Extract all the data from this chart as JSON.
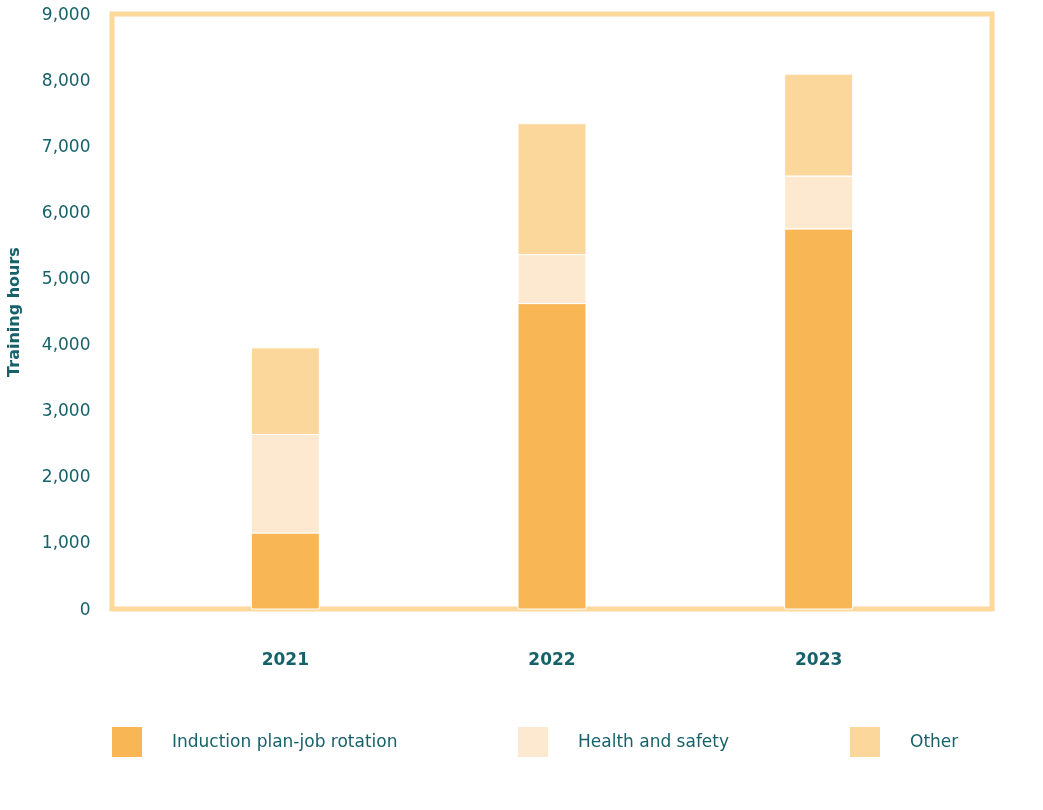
{
  "chart_data": {
    "type": "bar",
    "stacked": true,
    "ylabel": "Training hours",
    "categories": [
      "2021",
      "2022",
      "2023"
    ],
    "series": [
      {
        "name": "Induction plan-job rotation",
        "color": "#f9b655",
        "values": [
          1150,
          4620,
          5750
        ]
      },
      {
        "name": "Health and safety",
        "color": "#fde9cf",
        "values": [
          1490,
          740,
          800
        ]
      },
      {
        "name": "Other",
        "color": "#fcd79b",
        "values": [
          1310,
          1980,
          1540
        ]
      }
    ],
    "ylim": [
      0,
      9000
    ],
    "yticks": [
      0,
      {
        "value": 1000,
        "label": "1,000"
      },
      {
        "value": 2000,
        "label": "2,000"
      },
      {
        "value": 3000,
        "label": "3,000"
      },
      {
        "value": 4000,
        "label": "4,000"
      },
      {
        "value": 5000,
        "label": "5,000"
      },
      {
        "value": 6000,
        "label": "6,000"
      },
      {
        "value": 7000,
        "label": "7,000"
      },
      {
        "value": 8000,
        "label": "8,000"
      },
      {
        "value": 9000,
        "label": "9,000"
      }
    ],
    "grid": false,
    "legend": "bottom"
  }
}
